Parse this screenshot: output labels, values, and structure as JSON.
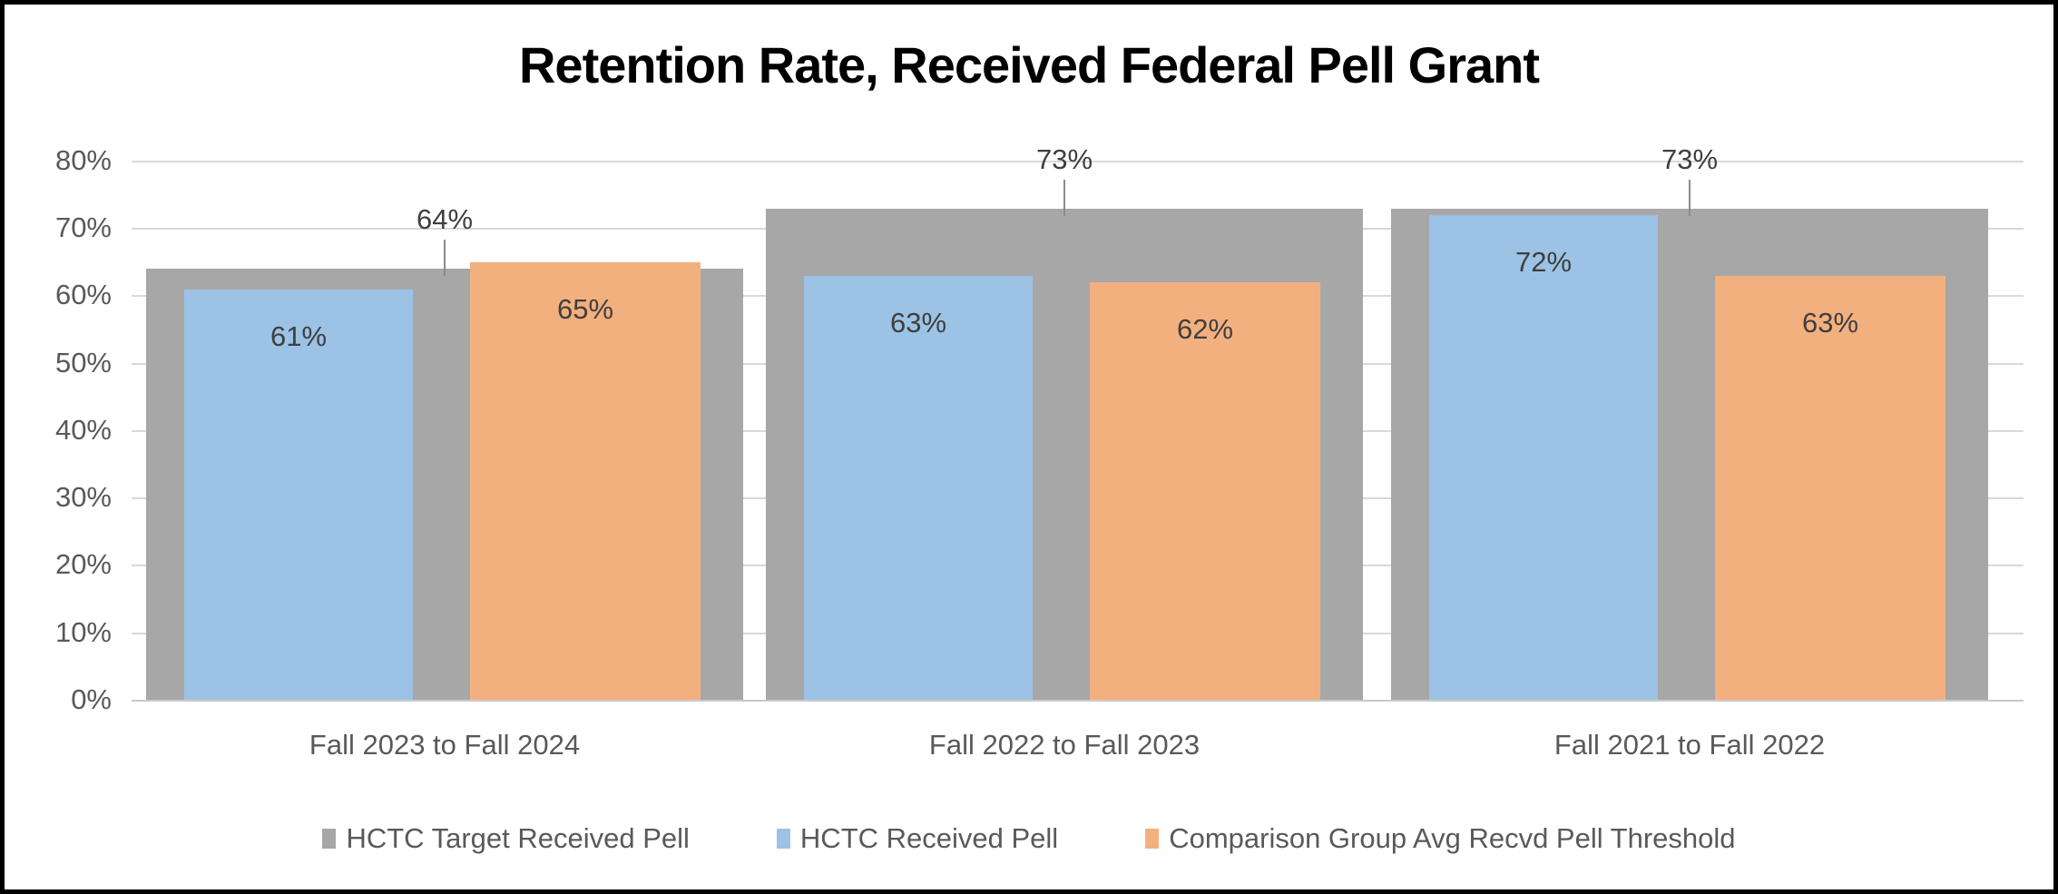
{
  "title": "Retention Rate, Received Federal Pell Grant",
  "chart_data": {
    "type": "bar",
    "categories": [
      "Fall 2023 to Fall 2024",
      "Fall 2022 to Fall 2023",
      "Fall 2021 to Fall 2022"
    ],
    "series": [
      {
        "name": "HCTC Target Received Pell",
        "role": "target-background",
        "color": "#A7A7A7",
        "values": [
          64,
          73,
          73
        ],
        "labels": [
          "64%",
          "73%",
          "73%"
        ],
        "label_position": "callout-above"
      },
      {
        "name": "HCTC Received Pell",
        "role": "overlay-left",
        "color": "#9CC3E5",
        "values": [
          61,
          63,
          72
        ],
        "labels": [
          "61%",
          "63%",
          "72%"
        ],
        "label_position": "inside-top"
      },
      {
        "name": "Comparison Group Avg Recvd Pell Threshold",
        "role": "overlay-right",
        "color": "#F3B07F",
        "values": [
          65,
          62,
          63
        ],
        "labels": [
          "65%",
          "62%",
          "63%"
        ],
        "label_position": "inside-top"
      }
    ],
    "xlabel": "",
    "ylabel": "",
    "ylim": [
      0,
      80
    ],
    "ytick_step": 10,
    "yticks": [
      "0%",
      "10%",
      "20%",
      "30%",
      "40%",
      "50%",
      "60%",
      "70%",
      "80%"
    ],
    "grid": true,
    "legend_position": "bottom"
  },
  "palette": {
    "title_text": "#000000",
    "axis_text": "#595959",
    "value_label_text": "#3F3F3F",
    "gridline": "#D9D9D9",
    "axis_line": "#C9C9C9",
    "leader_line": "#8C8C8C",
    "frame_border": "#000000",
    "background": "#FFFFFF"
  }
}
